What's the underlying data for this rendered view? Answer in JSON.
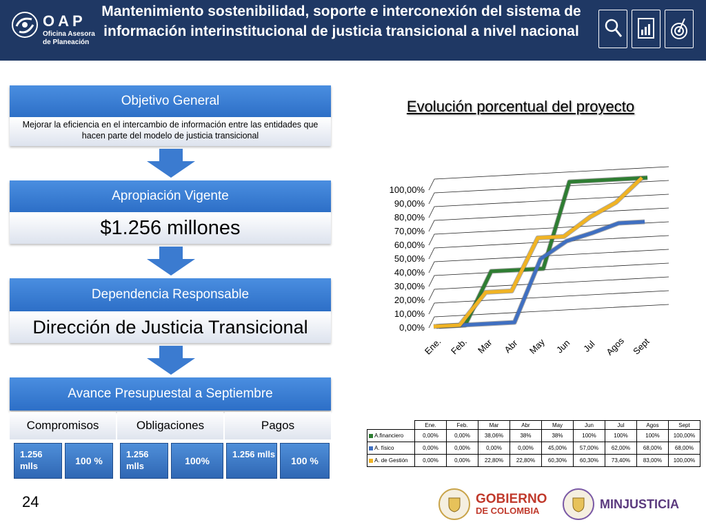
{
  "header": {
    "logo_title": "OAP",
    "logo_sub": "Oficina Asesora de Planeación",
    "title": "Mantenimiento sostenibilidad, soporte  e interconexión del sistema de información interinstitucional de justicia transicional a nivel nacional",
    "icons": [
      "magnifier-icon",
      "report-icon",
      "target-icon"
    ]
  },
  "objetivo": {
    "heading": "Objetivo General",
    "text": "Mejorar la eficiencia en el intercambio de información entre las entidades que hacen parte del modelo de justicia transicional"
  },
  "apropiacion": {
    "heading": "Apropiación Vigente",
    "value": "$1.256 millones"
  },
  "dependencia": {
    "heading": "Dependencia Responsable",
    "value": "Dirección de Justicia Transicional"
  },
  "avance": {
    "heading": "Avance Presupuestal a Septiembre",
    "columns": [
      {
        "label": "Compromisos",
        "amount": "1.256 mlls",
        "percent": "100 %"
      },
      {
        "label": "Obligaciones",
        "amount": "1.256 mlls",
        "percent": "100%"
      },
      {
        "label": "Pagos",
        "amount": "1.256 mlls",
        "percent": "100 %"
      }
    ]
  },
  "chart_data": {
    "type": "line",
    "title": "Evolución porcentual del proyecto",
    "categories": [
      "Ene.",
      "Feb.",
      "Mar",
      "Abr",
      "May",
      "Jun",
      "Jul",
      "Agos",
      "Sept"
    ],
    "y_ticks": [
      "100,00%",
      "90,00%",
      "80,00%",
      "70,00%",
      "60,00%",
      "50,00%",
      "40,00%",
      "30,00%",
      "20,00%",
      "10,00%",
      "0,00%"
    ],
    "ylim": [
      0,
      100
    ],
    "grid": true,
    "style": "3d-line",
    "series": [
      {
        "name": "A.financiero",
        "color": "#2e7d32",
        "values": [
          0,
          0,
          38.06,
          38,
          38,
          100,
          100,
          100,
          100
        ]
      },
      {
        "name": "A. físico",
        "color": "#3f6fc1",
        "values": [
          0,
          0,
          0,
          0,
          45,
          57,
          62,
          68,
          68
        ]
      },
      {
        "name": "A. de Gestión",
        "color": "#f0b323",
        "values": [
          0,
          0,
          22.8,
          22.8,
          60.3,
          60.3,
          73.4,
          83,
          100
        ]
      }
    ],
    "table": {
      "headers": [
        "Ene.",
        "Feb.",
        "Mar",
        "Abr",
        "May",
        "Jun",
        "Jul",
        "Agos",
        "Sept"
      ],
      "rows": [
        {
          "label": "A.financiero",
          "color": "#2e7d32",
          "cells": [
            "0,00%",
            "0,00%",
            "38,06%",
            "38%",
            "38%",
            "100%",
            "100%",
            "100%",
            "100,00%"
          ]
        },
        {
          "label": "A. físico",
          "color": "#3f6fc1",
          "cells": [
            "0,00%",
            "0,00%",
            "0,00%",
            "0,00%",
            "45,00%",
            "57,00%",
            "62,00%",
            "68,00%",
            "68,00%"
          ]
        },
        {
          "label": "A. de Gestión",
          "color": "#f0b323",
          "cells": [
            "0,00%",
            "0,00%",
            "22,80%",
            "22,80%",
            "60,30%",
            "60,30%",
            "73,40%",
            "83,00%",
            "100,00%"
          ]
        }
      ]
    }
  },
  "page_number": "24",
  "footer": {
    "gobierno_line1": "GOBIERNO",
    "gobierno_line2": "DE COLOMBIA",
    "minjusticia": "MINJUSTICIA"
  }
}
